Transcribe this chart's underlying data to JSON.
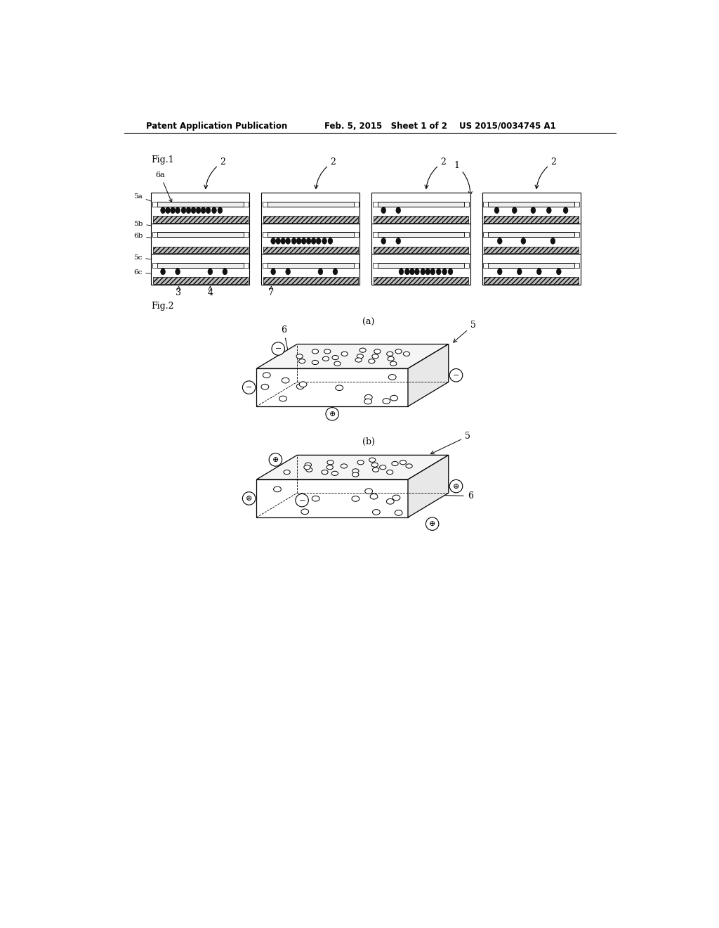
{
  "bg_color": "#ffffff",
  "header_text1": "Patent Application Publication",
  "header_text2": "Feb. 5, 2015   Sheet 1 of 2",
  "header_text3": "US 2015/0034745 A1",
  "fig1_label": "Fig.1",
  "fig2_label": "Fig.2",
  "fig2a_label": "(a)",
  "fig2b_label": "(b)"
}
